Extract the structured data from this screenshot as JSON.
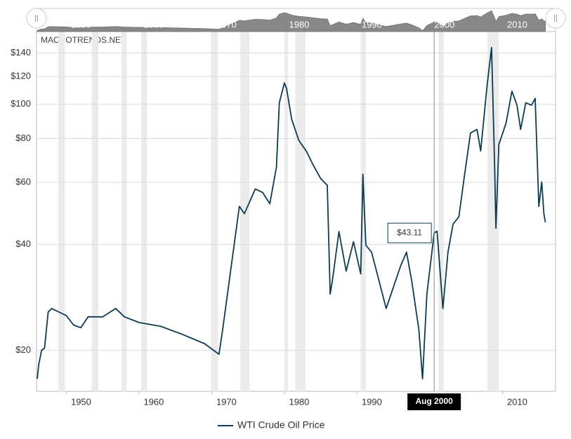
{
  "chart_data": {
    "type": "line",
    "watermark": "MACROTRENDS.NET",
    "log_scale": true,
    "grid": true,
    "xlim": [
      1945.9,
      2017.3
    ],
    "xticks": [
      1950,
      1960,
      1970,
      1980,
      1990,
      2010
    ],
    "ylim": [
      15.3,
      161
    ],
    "yticks": [
      {
        "value": 20,
        "label": "$20"
      },
      {
        "value": 40,
        "label": "$40"
      },
      {
        "value": 60,
        "label": "$60"
      },
      {
        "value": 80,
        "label": "$80"
      },
      {
        "value": 100,
        "label": "$100"
      },
      {
        "value": 120,
        "label": "$120"
      },
      {
        "value": 140,
        "label": "$140"
      }
    ],
    "recessions": [
      [
        1948.9,
        1949.8
      ],
      [
        1953.5,
        1954.4
      ],
      [
        1957.6,
        1958.3
      ],
      [
        1960.3,
        1961.1
      ],
      [
        1969.9,
        1970.9
      ],
      [
        1973.9,
        1975.2
      ],
      [
        1980.0,
        1980.5
      ],
      [
        1981.5,
        1982.9
      ],
      [
        1990.5,
        1991.2
      ],
      [
        2001.2,
        2001.9
      ],
      [
        2007.9,
        2009.5
      ]
    ],
    "navigator_labels": [
      {
        "value": 1950,
        "label": "1950"
      },
      {
        "value": 1960,
        "label": "1960"
      },
      {
        "value": 1970,
        "label": "1970"
      },
      {
        "value": 1980,
        "label": "1980"
      },
      {
        "value": 1990,
        "label": "1990"
      },
      {
        "value": 2000,
        "label": "2000"
      },
      {
        "value": 2010,
        "label": "2010"
      }
    ],
    "tooltip": {
      "x": 2000.6,
      "x_label": "Aug 2000",
      "value": 43.11,
      "value_label": "$43.11"
    },
    "x": [
      1946.0,
      1946.2,
      1946.6,
      1947.0,
      1947.5,
      1948.0,
      1949.0,
      1950.0,
      1951.0,
      1952.0,
      1953.0,
      1955.0,
      1956.8,
      1958.0,
      1960.0,
      1963.0,
      1966.0,
      1969.0,
      1971.0,
      1971.5,
      1973.8,
      1974.5,
      1976.0,
      1977.0,
      1978.0,
      1978.9,
      1979.3,
      1980.0,
      1980.3,
      1981.0,
      1982.0,
      1983.0,
      1984.0,
      1985.0,
      1985.9,
      1986.3,
      1986.6,
      1987.5,
      1988.5,
      1989.5,
      1990.5,
      1990.8,
      1991.2,
      1992.0,
      1993.0,
      1994.0,
      1996.0,
      1996.8,
      1997.5,
      1998.5,
      1999.0,
      1999.6,
      2000.6,
      2001.0,
      2001.8,
      2002.5,
      2003.2,
      2004.0,
      2004.8,
      2005.6,
      2006.5,
      2007.0,
      2007.9,
      2008.5,
      2008.9,
      2009.1,
      2009.5,
      2010.5,
      2011.3,
      2012.0,
      2012.5,
      2013.2,
      2014.0,
      2014.5,
      2015.0,
      2015.4,
      2015.7,
      2015.9
    ],
    "series": [
      {
        "name": "WTI Crude Oil Price",
        "color": "#0d3a52",
        "values": [
          16.6,
          18.2,
          20,
          20.3,
          25.7,
          26.3,
          25.7,
          25.1,
          23.6,
          23.2,
          24.9,
          24.9,
          26.3,
          24.9,
          24,
          23.4,
          22.2,
          20.9,
          19.5,
          22.9,
          51.3,
          48.9,
          57.5,
          56.2,
          52.2,
          66.4,
          101,
          115,
          111,
          90.7,
          78.9,
          73.7,
          67,
          61.5,
          58.9,
          28.9,
          31.6,
          43.5,
          33.6,
          40.7,
          33,
          63.3,
          39.8,
          38,
          31.6,
          26.3,
          34.8,
          38,
          31.6,
          22.9,
          16.6,
          28.9,
          43.11,
          43.6,
          26.3,
          38,
          45.7,
          47.9,
          63.3,
          82.9,
          84.9,
          73.7,
          114,
          145,
          69,
          44.5,
          77,
          88.5,
          109,
          99.4,
          84.9,
          101,
          99.4,
          104,
          51.3,
          60.2,
          48.9,
          46.2
        ]
      }
    ]
  }
}
